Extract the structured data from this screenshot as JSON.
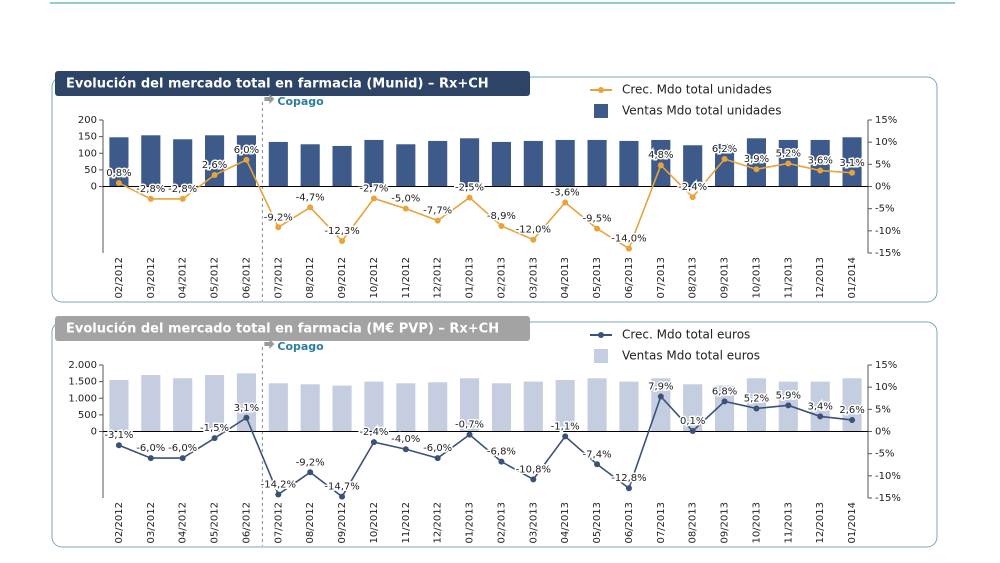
{
  "chart_data": [
    {
      "type": "combo",
      "title": "Evolución del mercado total en farmacia (Munid) – Rx+CH",
      "annotation": "Copago",
      "title_color": "#2e4466",
      "categories": [
        "02/2012",
        "03/2012",
        "04/2012",
        "05/2012",
        "06/2012",
        "07/2012",
        "08/2012",
        "09/2012",
        "10/2012",
        "11/2012",
        "12/2012",
        "01/2013",
        "02/2013",
        "03/2013",
        "04/2013",
        "05/2013",
        "06/2013",
        "07/2013",
        "08/2013",
        "09/2013",
        "10/2013",
        "11/2013",
        "12/2013",
        "01/2014"
      ],
      "series": [
        {
          "name": "Crec. Mdo total unidades",
          "type": "line",
          "axis": "y2",
          "color": "#e8a33a",
          "values": [
            0.8,
            -2.8,
            -2.8,
            2.6,
            6.0,
            -9.2,
            -4.7,
            -12.3,
            -2.7,
            -5.0,
            -7.7,
            -2.5,
            -8.9,
            -12.0,
            -3.6,
            -9.5,
            -14.0,
            4.8,
            -2.4,
            6.2,
            3.9,
            5.2,
            3.6,
            3.1
          ],
          "value_labels": [
            "0,8%",
            "-2,8%",
            "-2,8%",
            "2,6%",
            "6,0%",
            "-9,2%",
            "-4,7%",
            "-12,3%",
            "-2,7%",
            "-5,0%",
            "-7,7%",
            "-2,5%",
            "-8,9%",
            "-12,0%",
            "-3,6%",
            "-9,5%",
            "-14,0%",
            "4,8%",
            "-2,4%",
            "6,2%",
            "3,9%",
            "5,2%",
            "3,6%",
            "3,1%"
          ]
        },
        {
          "name": "Ventas Mdo total unidades",
          "type": "bar",
          "color": "#3d5a8a",
          "values": [
            148,
            154,
            142,
            154,
            154,
            134,
            127,
            122,
            140,
            127,
            137,
            145,
            134,
            137,
            140,
            140,
            137,
            140,
            124,
            128,
            145,
            140,
            140,
            148
          ]
        }
      ],
      "ylim": [
        -200,
        200
      ],
      "yticks": [
        0,
        50,
        100,
        150,
        200
      ],
      "y2lim": [
        -15,
        15
      ],
      "y2ticks": [
        {
          "value": -15,
          "label": "-15%"
        },
        {
          "value": -10,
          "label": "-10%"
        },
        {
          "value": -5,
          "label": "-5%"
        },
        {
          "value": 0,
          "label": "0%"
        },
        {
          "value": 5,
          "label": "5%"
        },
        {
          "value": 10,
          "label": "10%"
        },
        {
          "value": 15,
          "label": "15%"
        }
      ]
    },
    {
      "type": "combo",
      "title": "Evolución del mercado total en farmacia (M€ PVP) – Rx+CH",
      "annotation": "Copago",
      "title_color": "#a3a3a3",
      "categories": [
        "02/2012",
        "03/2012",
        "04/2012",
        "05/2012",
        "06/2012",
        "07/2012",
        "08/2012",
        "09/2012",
        "10/2012",
        "11/2012",
        "12/2012",
        "01/2013",
        "02/2013",
        "03/2013",
        "04/2013",
        "05/2013",
        "06/2013",
        "07/2013",
        "08/2013",
        "09/2013",
        "10/2013",
        "11/2013",
        "12/2013",
        "01/2014"
      ],
      "series": [
        {
          "name": "Crec. Mdo total euros",
          "type": "line",
          "axis": "y2",
          "color": "#3b5278",
          "values": [
            -3.1,
            -6.0,
            -6.0,
            -1.5,
            3.1,
            -14.2,
            -9.2,
            -14.7,
            -2.4,
            -4.0,
            -6.0,
            -0.7,
            -6.8,
            -10.8,
            -1.1,
            -7.4,
            -12.8,
            7.9,
            0.1,
            6.8,
            5.2,
            5.9,
            3.4,
            2.6
          ],
          "value_labels": [
            "-3,1%",
            "-6,0%",
            "-6,0%",
            "-1,5%",
            "3,1%",
            "-14,2%",
            "-9,2%",
            "-14,7%",
            "-2,4%",
            "-4,0%",
            "-6,0%",
            "-0,7%",
            "-6,8%",
            "-10,8%",
            "-1,1%",
            "-7,4%",
            "-12,8%",
            "7,9%",
            "0,1%",
            "6,8%",
            "5,2%",
            "5,9%",
            "3,4%",
            "2,6%"
          ]
        },
        {
          "name": "Ventas Mdo total euros",
          "type": "bar",
          "color": "#c5cde0",
          "values": [
            1550,
            1700,
            1600,
            1700,
            1750,
            1450,
            1420,
            1380,
            1500,
            1450,
            1480,
            1600,
            1450,
            1500,
            1550,
            1600,
            1500,
            1600,
            1420,
            1380,
            1600,
            1500,
            1500,
            1600
          ]
        }
      ],
      "ylim": [
        -2000,
        2000
      ],
      "yticks": [
        0,
        500,
        {
          "value": 1000,
          "label": "1.000"
        },
        {
          "value": 1500,
          "label": "1.500"
        },
        {
          "value": 2000,
          "label": "2.000"
        }
      ],
      "y2lim": [
        -15,
        15
      ],
      "y2ticks": [
        {
          "value": -15,
          "label": "-15%"
        },
        {
          "value": -10,
          "label": "-10%"
        },
        {
          "value": -5,
          "label": "-5%"
        },
        {
          "value": 0,
          "label": "0%"
        },
        {
          "value": 5,
          "label": "5%"
        },
        {
          "value": 10,
          "label": "10%"
        },
        {
          "value": 15,
          "label": "15%"
        }
      ]
    }
  ]
}
